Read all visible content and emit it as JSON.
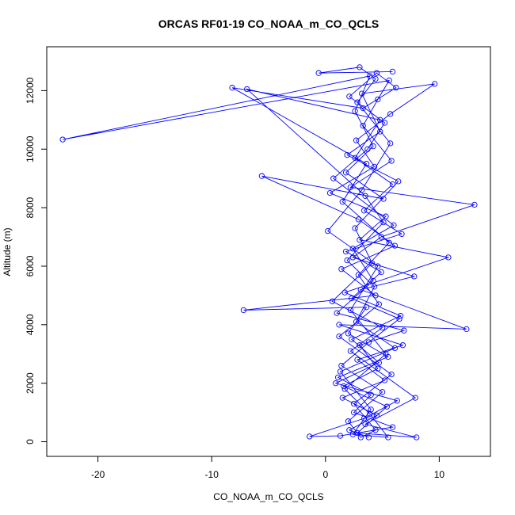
{
  "chart_data": {
    "type": "line",
    "title": "ORCAS RF01-19 CO_NOAA_m_CO_QCLS",
    "xlabel": "CO_NOAA_m_CO_QCLS",
    "ylabel": "Altitude (m)",
    "xlim": [
      -24.5,
      14.5
    ],
    "ylim": [
      -500,
      13500
    ],
    "x_ticks": [
      -20,
      -10,
      0,
      10
    ],
    "y_ticks": [
      0,
      2000,
      4000,
      6000,
      8000,
      10000,
      12000
    ],
    "markers": "open-circle",
    "grid": false,
    "legend": "none",
    "color": "#0000ff",
    "series": [
      {
        "values": [
          {
            "x": 3.8,
            "y": 150
          },
          {
            "x": 2.1,
            "y": 400
          },
          {
            "x": 4.5,
            "y": 900
          },
          {
            "x": 1.5,
            "y": 1500
          },
          {
            "x": 5.2,
            "y": 2100
          },
          {
            "x": 2.8,
            "y": 2800
          },
          {
            "x": 6.8,
            "y": 3300
          },
          {
            "x": 1.2,
            "y": 4000
          },
          {
            "x": 12.4,
            "y": 3850
          },
          {
            "x": 3.1,
            "y": 5200
          },
          {
            "x": 7.8,
            "y": 5650
          },
          {
            "x": 2.4,
            "y": 6300
          },
          {
            "x": 4.9,
            "y": 7000
          },
          {
            "x": 13.1,
            "y": 8100
          },
          {
            "x": 2.2,
            "y": 8700
          },
          {
            "x": 5.8,
            "y": 9600
          },
          {
            "x": 3.3,
            "y": 10800
          },
          {
            "x": 4.6,
            "y": 11700
          },
          {
            "x": 5.6,
            "y": 12350
          },
          {
            "x": -23.1,
            "y": 10330
          },
          {
            "x": 3.9,
            "y": 12500
          },
          {
            "x": 2.6,
            "y": 11300
          },
          {
            "x": 4.2,
            "y": 10100
          },
          {
            "x": 1.8,
            "y": 9200
          },
          {
            "x": 5.1,
            "y": 8300
          },
          {
            "x": -5.6,
            "y": 9080
          },
          {
            "x": 2.9,
            "y": 7600
          },
          {
            "x": 6.1,
            "y": 6700
          },
          {
            "x": 1.4,
            "y": 5900
          },
          {
            "x": 4.4,
            "y": 5000
          },
          {
            "x": -7.2,
            "y": 4500
          },
          {
            "x": 3.6,
            "y": 4600
          },
          {
            "x": 2.0,
            "y": 3700
          },
          {
            "x": 5.5,
            "y": 2900
          },
          {
            "x": 1.1,
            "y": 2200
          },
          {
            "x": 4.0,
            "y": 1600
          },
          {
            "x": 2.5,
            "y": 1000
          },
          {
            "x": 5.9,
            "y": 500
          },
          {
            "x": 1.3,
            "y": 200
          },
          {
            "x": -1.4,
            "y": 180
          },
          {
            "x": 3.4,
            "y": 800
          },
          {
            "x": 6.3,
            "y": 1400
          },
          {
            "x": 0.9,
            "y": 2000
          },
          {
            "x": 4.7,
            "y": 2700
          },
          {
            "x": 2.3,
            "y": 3500
          },
          {
            "x": 6.6,
            "y": 4300
          },
          {
            "x": 1.7,
            "y": 5100
          },
          {
            "x": 10.8,
            "y": 6300
          },
          {
            "x": 3.0,
            "y": 6900
          },
          {
            "x": 5.3,
            "y": 7700
          },
          {
            "x": 0.4,
            "y": 8500
          },
          {
            "x": 4.3,
            "y": 9400
          },
          {
            "x": 2.7,
            "y": 10300
          },
          {
            "x": 5.7,
            "y": 11200
          },
          {
            "x": 9.6,
            "y": 12230
          },
          {
            "x": 3.2,
            "y": 11900
          },
          {
            "x": 4.8,
            "y": 10600
          },
          {
            "x": 1.9,
            "y": 9800
          },
          {
            "x": 6.4,
            "y": 8900
          },
          {
            "x": 2.6,
            "y": 7300
          },
          {
            "x": 4.1,
            "y": 6100
          },
          {
            "x": 0.6,
            "y": 4800
          },
          {
            "x": 5.0,
            "y": 3900
          },
          {
            "x": 2.2,
            "y": 3100
          },
          {
            "x": 7.9,
            "y": 1500
          },
          {
            "x": 3.5,
            "y": 600
          },
          {
            "x": 8.0,
            "y": 150
          },
          {
            "x": 2.8,
            "y": 300
          },
          {
            "x": 5.4,
            "y": 1200
          },
          {
            "x": 1.6,
            "y": 1900
          },
          {
            "x": 4.6,
            "y": 2500
          },
          {
            "x": 3.0,
            "y": 3300
          },
          {
            "x": 6.9,
            "y": 3800
          },
          {
            "x": 1.0,
            "y": 4400
          },
          {
            "x": 4.2,
            "y": 5500
          },
          {
            "x": 2.4,
            "y": 6600
          },
          {
            "x": 6.0,
            "y": 7400
          },
          {
            "x": 0.7,
            "y": 9000
          },
          {
            "x": 3.7,
            "y": 10000
          },
          {
            "x": 5.2,
            "y": 10900
          },
          {
            "x": 2.1,
            "y": 11800
          },
          {
            "x": 4.5,
            "y": 12600
          },
          {
            "x": 6.2,
            "y": 12100
          },
          {
            "x": 3.3,
            "y": 11400
          },
          {
            "x": -8.2,
            "y": 12100
          },
          {
            "x": 3.6,
            "y": 9500
          },
          {
            "x": 1.5,
            "y": 8200
          },
          {
            "x": 5.6,
            "y": 6800
          },
          {
            "x": 2.9,
            "y": 5700
          },
          {
            "x": 4.7,
            "y": 4700
          },
          {
            "x": 1.2,
            "y": 3600
          },
          {
            "x": 5.8,
            "y": 2300
          },
          {
            "x": 2.5,
            "y": 1300
          },
          {
            "x": 4.4,
            "y": 400
          },
          {
            "x": 3.1,
            "y": 150
          },
          {
            "x": 2.0,
            "y": 700
          },
          {
            "x": 5.0,
            "y": 1700
          },
          {
            "x": 1.4,
            "y": 2600
          },
          {
            "x": 3.8,
            "y": 3400
          },
          {
            "x": 6.5,
            "y": 4200
          },
          {
            "x": 2.3,
            "y": 4900
          },
          {
            "x": 4.9,
            "y": 5800
          },
          {
            "x": 1.8,
            "y": 6500
          },
          {
            "x": 6.7,
            "y": 7100
          },
          {
            "x": 3.4,
            "y": 7900
          },
          {
            "x": 5.9,
            "y": 8800
          },
          {
            "x": 2.6,
            "y": 9700
          },
          {
            "x": 4.8,
            "y": 11000
          },
          {
            "x": -6.9,
            "y": 12050
          },
          {
            "x": 3.5,
            "y": 8400
          },
          {
            "x": 5.1,
            "y": 7500
          },
          {
            "x": 1.9,
            "y": 6200
          },
          {
            "x": 4.3,
            "y": 5300
          },
          {
            "x": 2.7,
            "y": 4100
          },
          {
            "x": 6.1,
            "y": 3200
          },
          {
            "x": 1.3,
            "y": 2400
          },
          {
            "x": 4.0,
            "y": 1100
          },
          {
            "x": 2.4,
            "y": 250
          },
          {
            "x": 5.5,
            "y": 150
          },
          {
            "x": 3.9,
            "y": 950
          },
          {
            "x": 1.7,
            "y": 1800
          },
          {
            "x": 5.3,
            "y": 3000
          },
          {
            "x": 2.2,
            "y": 4500
          },
          {
            "x": 4.6,
            "y": 6000
          },
          {
            "x": 0.2,
            "y": 7200
          },
          {
            "x": 3.2,
            "y": 8600
          },
          {
            "x": 5.7,
            "y": 10200
          },
          {
            "x": 2.8,
            "y": 11600
          },
          {
            "x": 4.4,
            "y": 12400
          },
          {
            "x": 3.0,
            "y": 12800
          },
          {
            "x": -0.6,
            "y": 12600
          },
          {
            "x": 5.9,
            "y": 12650
          }
        ]
      }
    ]
  }
}
